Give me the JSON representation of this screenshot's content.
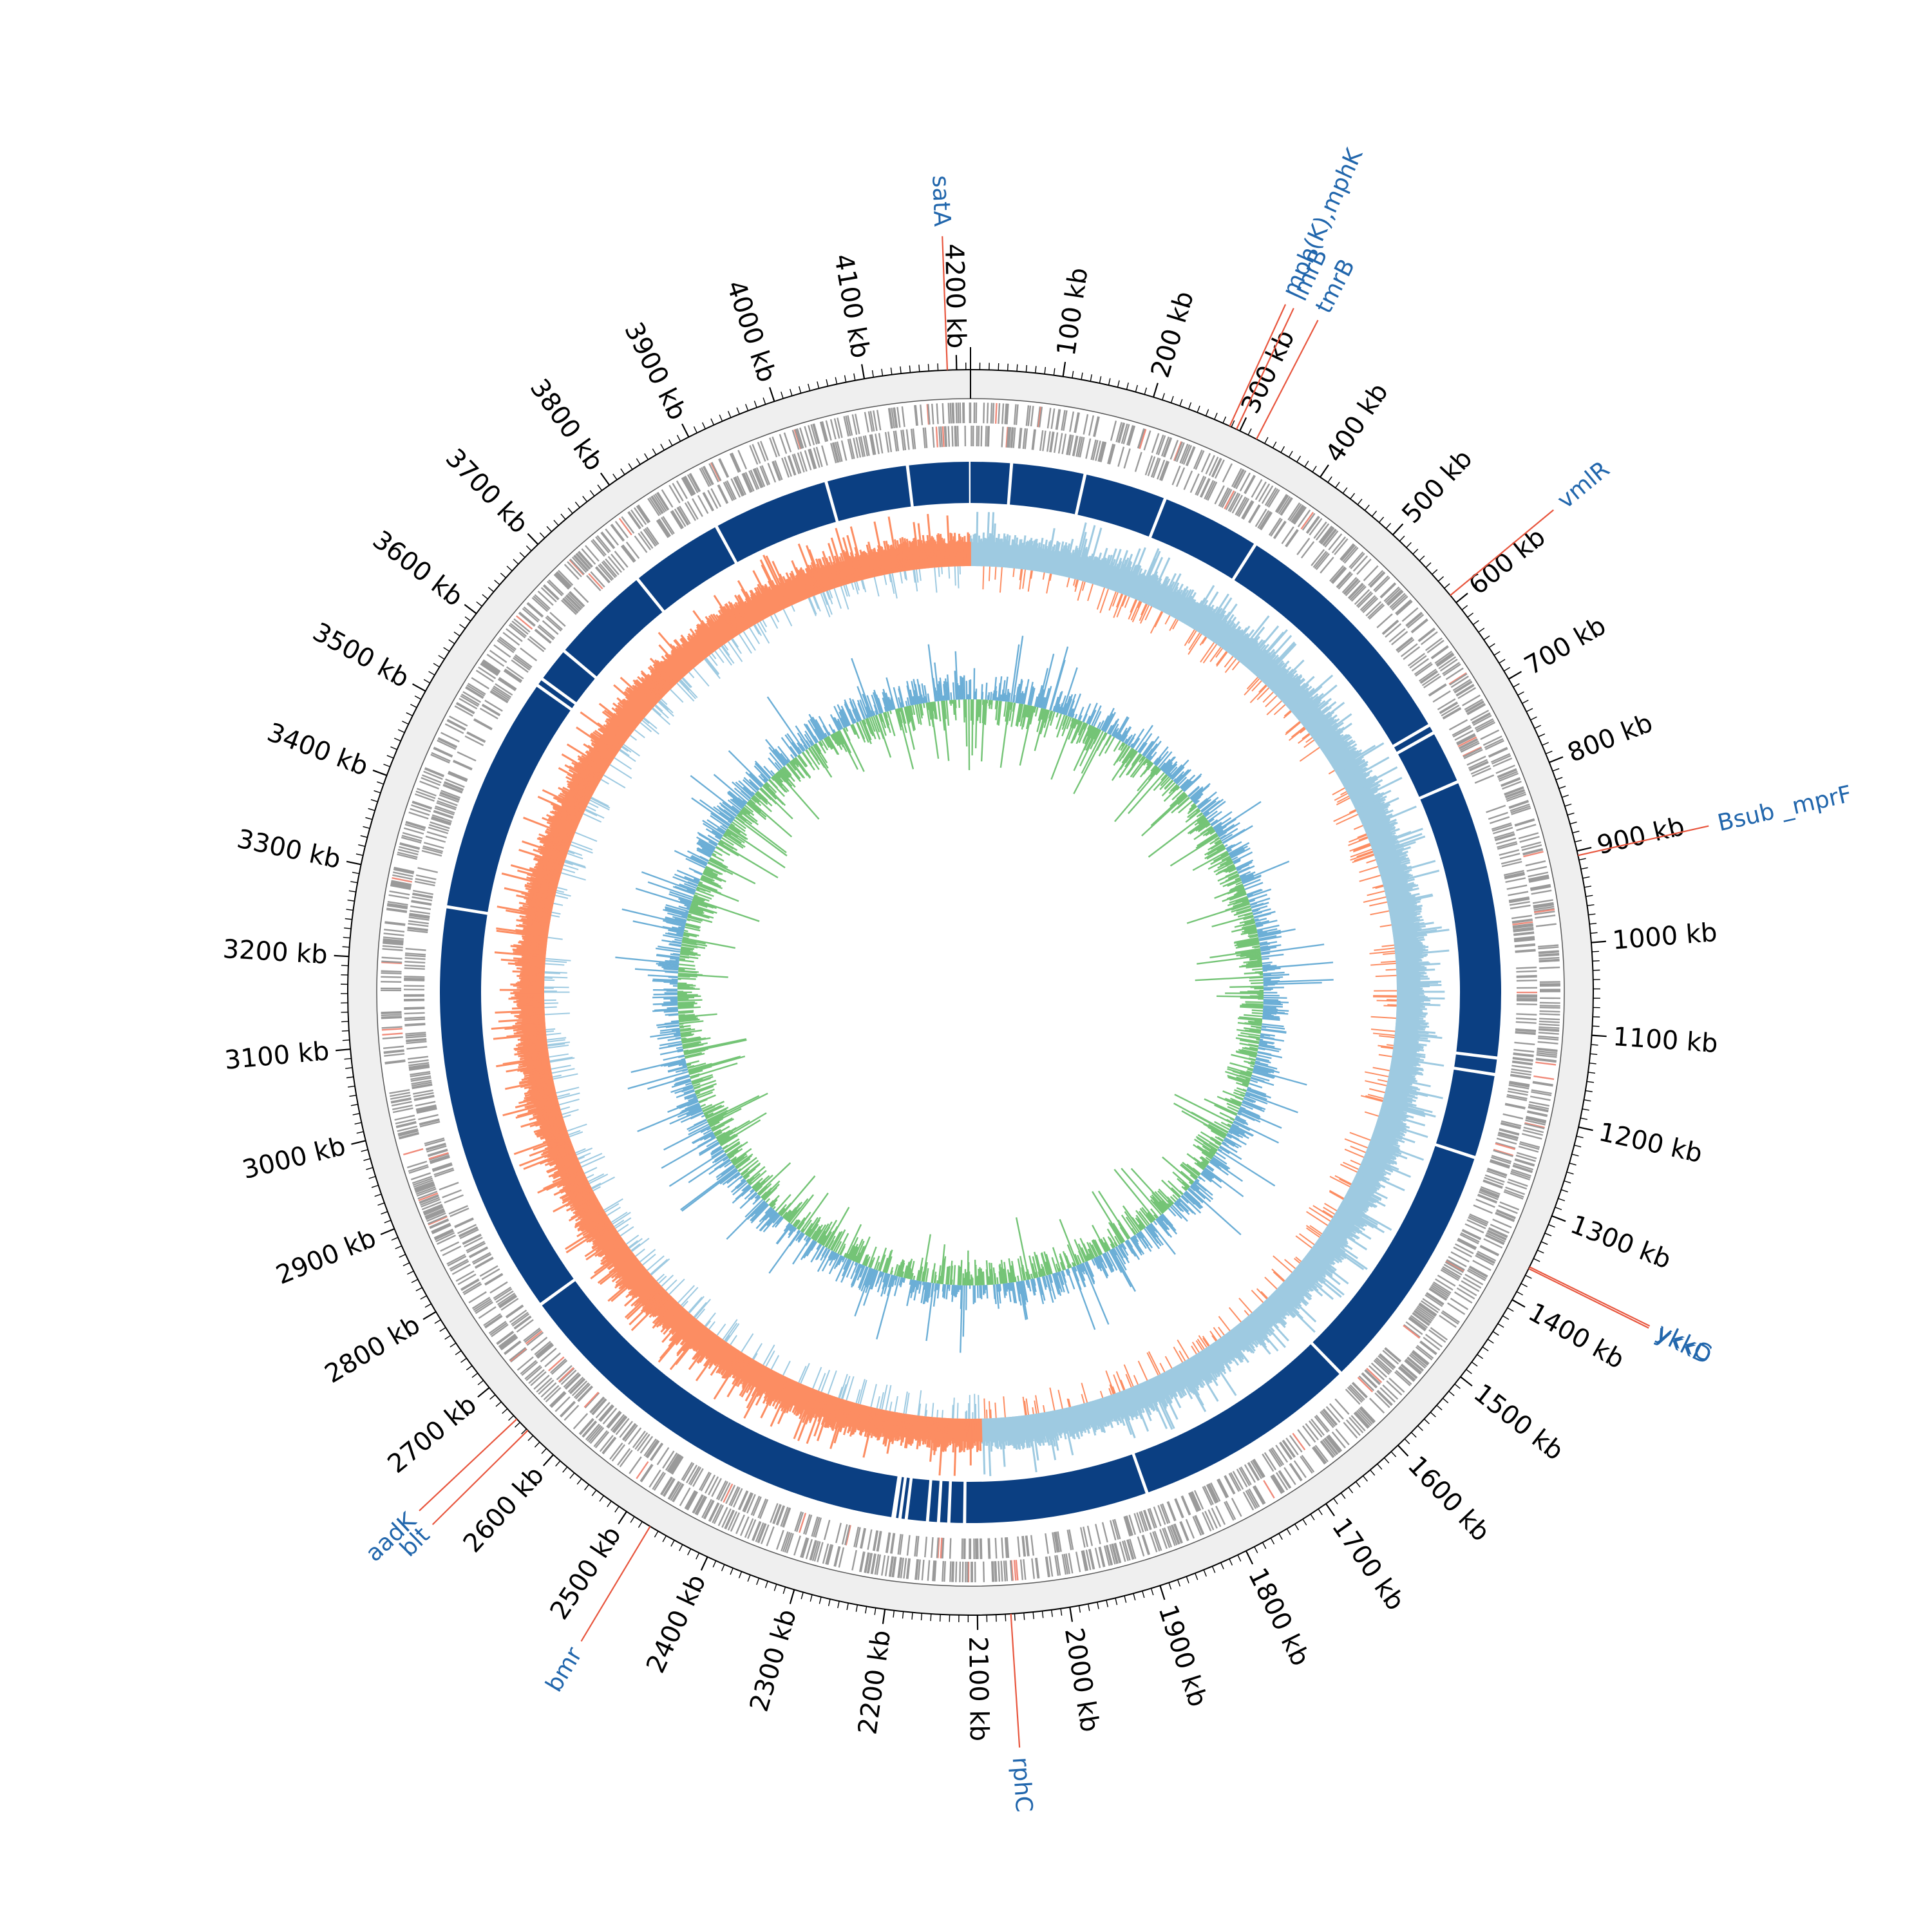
{
  "genome": {
    "length_kb": 4215,
    "tick_interval_kb": 100,
    "minor_tick_interval_kb": 10,
    "tick_unit": "kb"
  },
  "colors": {
    "background_ring": "#efefef",
    "feature_gray": "#9a9a9a",
    "feature_red": "#f08a7a",
    "contig_blue": "#0b3f82",
    "gc_skew_positive": "#9ecae1",
    "gc_skew_negative": "#fc8d62",
    "gc_content_blue": "#6baed6",
    "gc_content_green": "#74c476",
    "label_line": "#e8553d",
    "label_text": "#2166ac",
    "axis": "#000000"
  },
  "contig_gaps_kb": [
    52,
    146,
    252,
    380,
    700,
    711,
    780,
    1137,
    1158,
    1266,
    1590,
    1880,
    2115,
    2135,
    2148,
    2162,
    2189,
    2197,
    2204,
    2206,
    2740,
    3270,
    3575,
    3585,
    3630,
    3760,
    3880,
    4030,
    4135
  ],
  "genes": [
    {
      "name": "satA",
      "position_kb": 4190
    },
    {
      "name": "mph(K),mphK",
      "position_kb": 288
    },
    {
      "name": "lmrB",
      "position_kb": 296
    },
    {
      "name": "tmrB",
      "position_kb": 320
    },
    {
      "name": "vmlR",
      "position_kb": 590
    },
    {
      "name": "Bsub _mprF",
      "position_kb": 905
    },
    {
      "name": "ykkC",
      "position_kb": 1360
    },
    {
      "name": "ykkD",
      "position_kb": 1362
    },
    {
      "name": "rphC",
      "position_kb": 2064
    },
    {
      "name": "bmr",
      "position_kb": 2470
    },
    {
      "name": "blt",
      "position_kb": 2638
    },
    {
      "name": "aadK",
      "position_kb": 2655
    }
  ]
}
